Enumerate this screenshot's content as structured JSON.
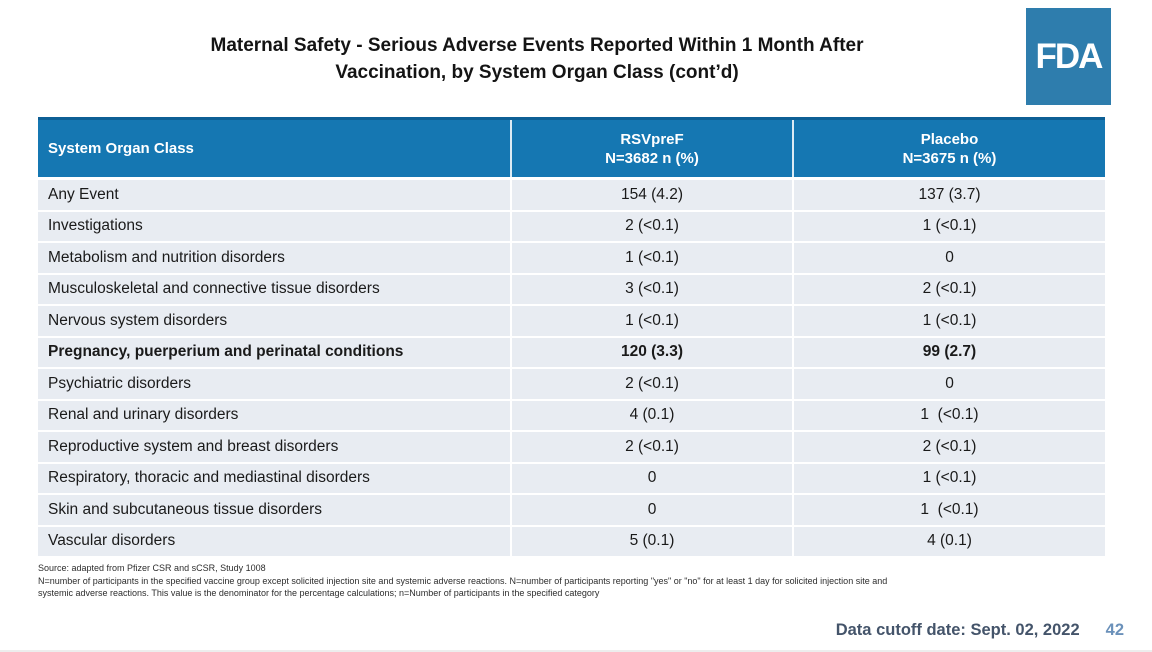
{
  "slide": {
    "title_line1": "Maternal Safety - Serious Adverse Events Reported Within 1 Month After",
    "title_line2": "Vaccination, by System Organ Class (cont’d)",
    "logo_text": "FDA",
    "footer": {
      "data_cutoff": "Data cutoff date: Sept. 02, 2022",
      "page_number": "42"
    }
  },
  "table": {
    "header": {
      "soc": "System Organ Class",
      "rsvpref_line1": "RSVpreF",
      "rsvpref_line2": "N=3682 n (%)",
      "placebo_line1": "Placebo",
      "placebo_line2": "N=3675 n (%)"
    },
    "rows": [
      {
        "soc": "Any Event",
        "rsvpref": "154 (4.2)",
        "placebo": "137 (3.7)",
        "bold": false
      },
      {
        "soc": "Investigations",
        "rsvpref": "2 (<0.1)",
        "placebo": "1 (<0.1)",
        "bold": false
      },
      {
        "soc": "Metabolism and nutrition disorders",
        "rsvpref": "1 (<0.1)",
        "placebo": "0",
        "bold": false
      },
      {
        "soc": "Musculoskeletal and connective tissue disorders",
        "rsvpref": "3 (<0.1)",
        "placebo": "2 (<0.1)",
        "bold": false
      },
      {
        "soc": "Nervous system disorders",
        "rsvpref": "1 (<0.1)",
        "placebo": "1 (<0.1)",
        "bold": false
      },
      {
        "soc": "Pregnancy, puerperium and perinatal conditions",
        "rsvpref": "120 (3.3)",
        "placebo": "99 (2.7)",
        "bold": true
      },
      {
        "soc": "Psychiatric disorders",
        "rsvpref": "2 (<0.1)",
        "placebo": "0",
        "bold": false
      },
      {
        "soc": "Renal and urinary disorders",
        "rsvpref": "4 (0.1)",
        "placebo": "1  (<0.1)",
        "bold": false
      },
      {
        "soc": "Reproductive system and breast disorders",
        "rsvpref": "2 (<0.1)",
        "placebo": "2 (<0.1)",
        "bold": false
      },
      {
        "soc": "Respiratory, thoracic and mediastinal disorders",
        "rsvpref": "0",
        "placebo": "1 (<0.1)",
        "bold": false
      },
      {
        "soc": "Skin and subcutaneous tissue disorders",
        "rsvpref": "0",
        "placebo": "1  (<0.1)",
        "bold": false
      },
      {
        "soc": "Vascular disorders",
        "rsvpref": "5 (0.1)",
        "placebo": "4 (0.1)",
        "bold": false
      }
    ]
  },
  "footnote_lines": [
    "Source: adapted from Pfizer CSR and sCSR, Study 1008",
    "N=number of participants in the specified vaccine group except solicited injection site and systemic adverse reactions. N=number of participants reporting \"yes\" or \"no\" for at least 1 day for solicited injection site and",
    "systemic adverse reactions. This value is the denominator for the percentage calculations; n=Number of participants in the specified category"
  ],
  "colors": {
    "header_blue": "#1577b2",
    "logo_blue": "#2e7dad",
    "row_bg": "#e8ecf2",
    "footer_text": "#44546a",
    "page_number": "#6b91ba"
  }
}
